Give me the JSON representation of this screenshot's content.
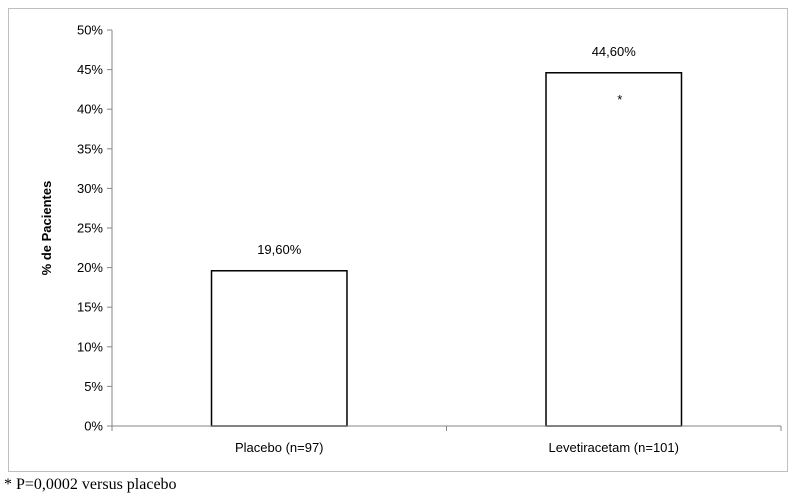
{
  "chart_data": {
    "type": "bar",
    "categories": [
      "Placebo (n=97)",
      "Levetiracetam (n=101)"
    ],
    "values": [
      19.6,
      44.6
    ],
    "data_labels": [
      "19,60%",
      "44,60%"
    ],
    "annotations": [
      {
        "category": "Levetiracetam (n=101)",
        "text": "*"
      }
    ],
    "title": "",
    "xlabel": "",
    "ylabel": "% de Pacientes",
    "ylim": [
      0,
      50
    ],
    "y_ticks": [
      0,
      5,
      10,
      15,
      20,
      25,
      30,
      35,
      40,
      45,
      50
    ],
    "y_tick_labels": [
      "0%",
      "5%",
      "10%",
      "15%",
      "20%",
      "25%",
      "30%",
      "35%",
      "40%",
      "45%",
      "50%"
    ],
    "grid": false,
    "legend": "none",
    "bar_fill": "#ffffff",
    "bar_stroke": "#000000"
  },
  "footnote": "* P=0,0002 versus placebo"
}
